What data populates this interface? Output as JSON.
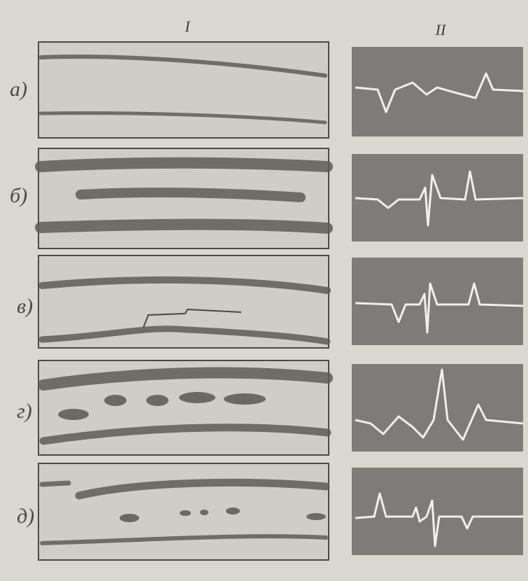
{
  "columns": [
    "I",
    "II"
  ],
  "rows": [
    "а)",
    "б)",
    "в)",
    "г)",
    "д)"
  ]
}
